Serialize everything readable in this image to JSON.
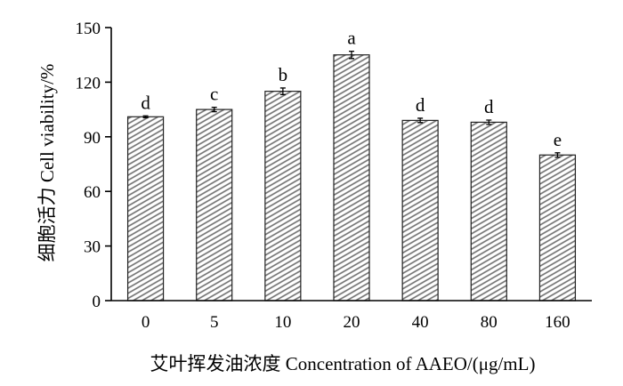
{
  "chart_data": {
    "type": "bar",
    "categories": [
      "0",
      "5",
      "10",
      "20",
      "40",
      "80",
      "160"
    ],
    "values": [
      101,
      105,
      115,
      135,
      99,
      98,
      80
    ],
    "errors": [
      0.5,
      1.2,
      1.8,
      2.0,
      1.2,
      1.2,
      1.2
    ],
    "significance": [
      "d",
      "c",
      "b",
      "a",
      "d",
      "d",
      "e"
    ],
    "ylim": [
      0,
      150
    ],
    "yticks": [
      0,
      30,
      60,
      90,
      120,
      150
    ],
    "ylabel": "细胞活力 Cell viability/%",
    "xlabel": "艾叶挥发油浓度 Concentration of AAEO/(μg/mL)",
    "title": "",
    "grid": false,
    "bar_fill": "hatched-gray"
  }
}
